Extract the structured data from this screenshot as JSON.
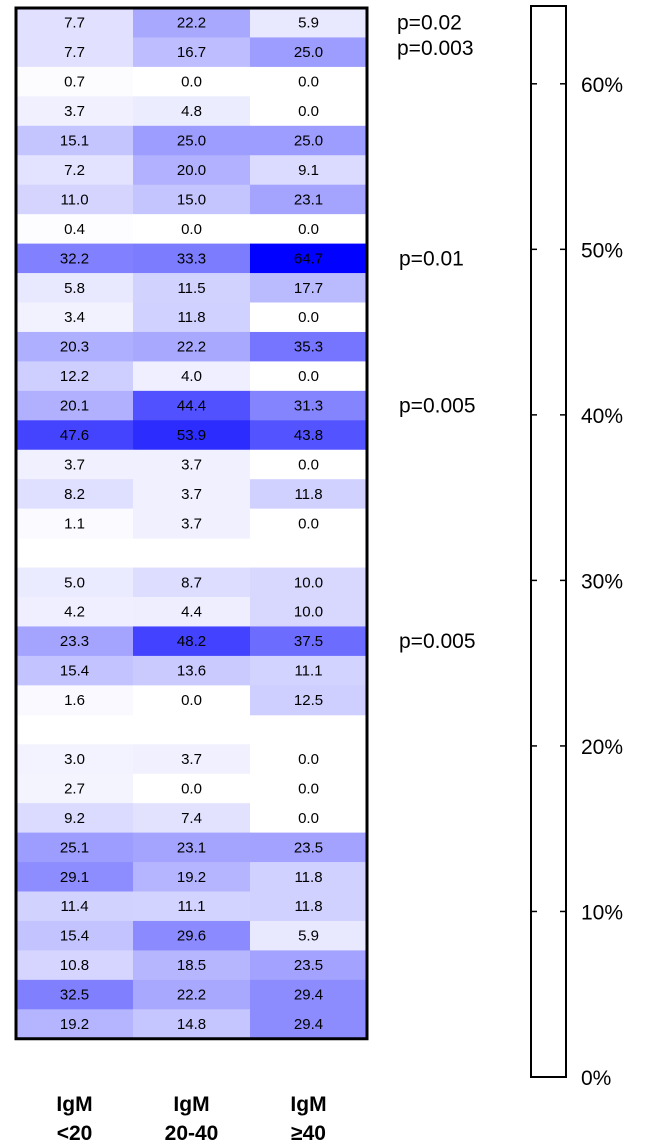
{
  "chart_data": {
    "type": "heatmap",
    "columns": [
      {
        "line1": "IgM",
        "line2": "<20"
      },
      {
        "line1": "IgM",
        "line2": "20-40"
      },
      {
        "line1": "IgM",
        "line2": "≥40"
      }
    ],
    "rows": [
      [
        "7.7",
        "22.2",
        "5.9"
      ],
      [
        "7.7",
        "16.7",
        "25.0"
      ],
      [
        "0.7",
        "0.0",
        "0.0"
      ],
      [
        "3.7",
        "4.8",
        "0.0"
      ],
      [
        "15.1",
        "25.0",
        "25.0"
      ],
      [
        "7.2",
        "20.0",
        "9.1"
      ],
      [
        "11.0",
        "15.0",
        "23.1"
      ],
      [
        "0.4",
        "0.0",
        "0.0"
      ],
      [
        "32.2",
        "33.3",
        "64.7"
      ],
      [
        "5.8",
        "11.5",
        "17.7"
      ],
      [
        "3.4",
        "11.8",
        "0.0"
      ],
      [
        "20.3",
        "22.2",
        "35.3"
      ],
      [
        "12.2",
        "4.0",
        "0.0"
      ],
      [
        "20.1",
        "44.4",
        "31.3"
      ],
      [
        "47.6",
        "53.9",
        "43.8"
      ],
      [
        "3.7",
        "3.7",
        "0.0"
      ],
      [
        "8.2",
        "3.7",
        "11.8"
      ],
      [
        "1.1",
        "3.7",
        "0.0"
      ],
      null,
      [
        "5.0",
        "8.7",
        "10.0"
      ],
      [
        "4.2",
        "4.4",
        "10.0"
      ],
      [
        "23.3",
        "48.2",
        "37.5"
      ],
      [
        "15.4",
        "13.6",
        "11.1"
      ],
      [
        "1.6",
        "0.0",
        "12.5"
      ],
      null,
      [
        "3.0",
        "3.7",
        "0.0"
      ],
      [
        "2.7",
        "0.0",
        "0.0"
      ],
      [
        "9.2",
        "7.4",
        "0.0"
      ],
      [
        "25.1",
        "23.1",
        "23.5"
      ],
      [
        "29.1",
        "19.2",
        "11.8"
      ],
      [
        "11.4",
        "11.1",
        "11.8"
      ],
      [
        "15.4",
        "29.6",
        "5.9"
      ],
      [
        "10.8",
        "18.5",
        "23.5"
      ],
      [
        "32.5",
        "22.2",
        "29.4"
      ],
      [
        "19.2",
        "14.8",
        "29.4"
      ]
    ],
    "p_values": [
      {
        "row": 0,
        "text": "p=0.02"
      },
      {
        "row": 1,
        "text": "p=0.003"
      },
      {
        "row": 8,
        "text": "p=0.01"
      },
      {
        "row": 13,
        "text": "p=0.005"
      },
      {
        "row": 21,
        "text": "p=0.005"
      }
    ],
    "color_scale": {
      "min_color": "#ffffff",
      "max_color": "#0000ff",
      "range": [
        0,
        65
      ],
      "ticks": [
        "0%",
        "10%",
        "20%",
        "30%",
        "40%",
        "50%",
        "60%"
      ],
      "tick_values": [
        0,
        10,
        20,
        30,
        40,
        50,
        60
      ]
    }
  }
}
